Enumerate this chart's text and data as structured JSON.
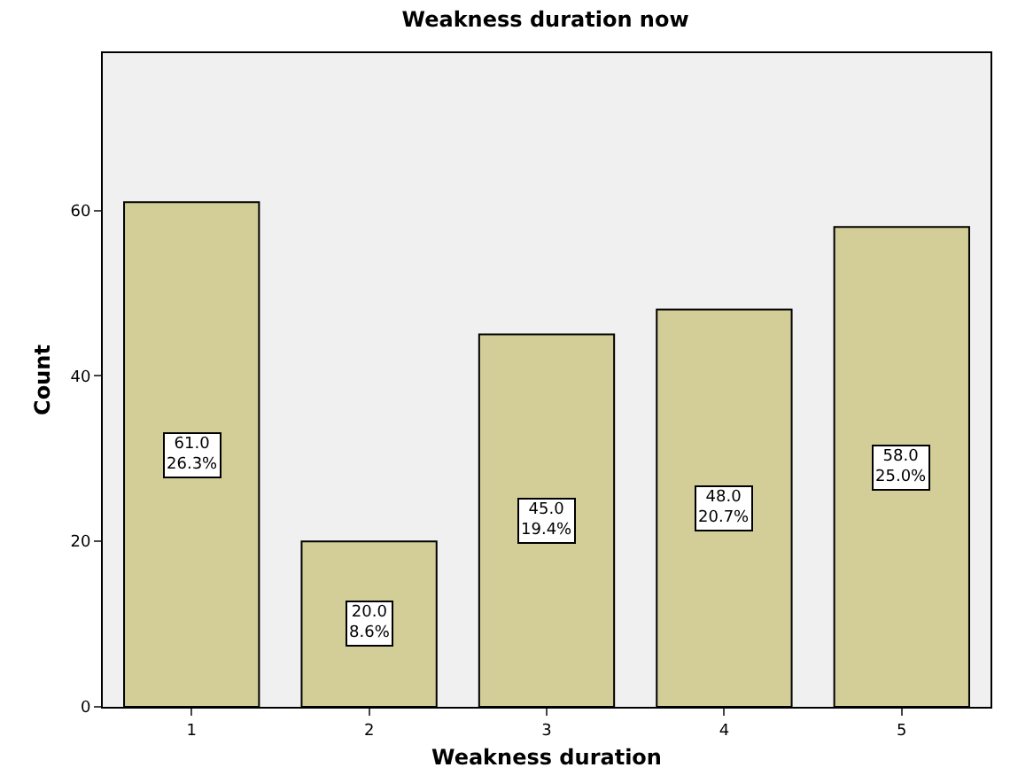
{
  "chart_data": {
    "type": "bar",
    "title": "Weakness duration now",
    "xlabel": "Weakness duration",
    "ylabel": "Count",
    "categories": [
      "1",
      "2",
      "3",
      "4",
      "5"
    ],
    "values": [
      61,
      20,
      45,
      48,
      58
    ],
    "value_labels": [
      "61.0\n26.3%",
      "20.0\n8.6%",
      "45.0\n19.4%",
      "48.0\n20.7%",
      "58.0\n25.0%"
    ],
    "color": "#d3ce97",
    "ylim": [
      0,
      79
    ],
    "yticks": [
      0,
      20,
      40,
      60
    ],
    "grid": false,
    "legend": false
  }
}
